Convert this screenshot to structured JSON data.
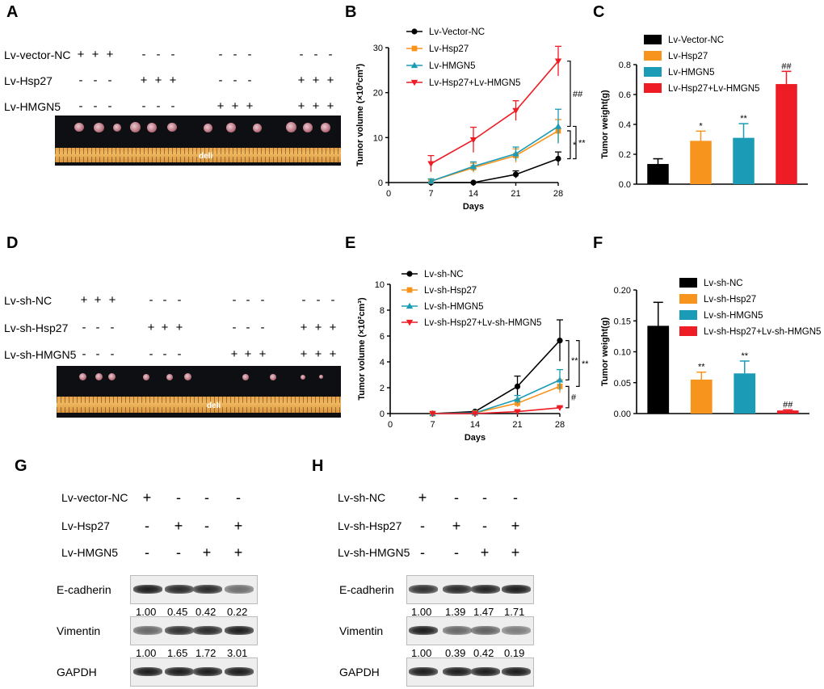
{
  "panels": {
    "A": {
      "label": "A",
      "rows": [
        {
          "label": "Lv-vector-NC",
          "signs": [
            "+",
            "+",
            "+",
            "-",
            "-",
            "-",
            "-",
            "-",
            "-",
            "-",
            "-",
            "-"
          ]
        },
        {
          "label": "Lv-Hsp27",
          "signs": [
            "-",
            "-",
            "-",
            "+",
            "+",
            "+",
            "-",
            "-",
            "-",
            "+",
            "+",
            "+"
          ]
        },
        {
          "label": "Lv-HMGN5",
          "signs": [
            "-",
            "-",
            "-",
            "-",
            "-",
            "-",
            "+",
            "+",
            "+",
            "+",
            "+",
            "+"
          ]
        }
      ],
      "ruler_brand": "deli"
    },
    "D": {
      "label": "D",
      "rows": [
        {
          "label": "Lv-sh-NC",
          "signs": [
            "+",
            "+",
            "+",
            "-",
            "-",
            "-",
            "-",
            "-",
            "-",
            "-",
            "-",
            "-"
          ]
        },
        {
          "label": "Lv-sh-Hsp27",
          "signs": [
            "-",
            "-",
            "-",
            "+",
            "+",
            "+",
            "-",
            "-",
            "-",
            "+",
            "+",
            "+"
          ]
        },
        {
          "label": "Lv-sh-HMGN5",
          "signs": [
            "-",
            "-",
            "-",
            "-",
            "-",
            "-",
            "+",
            "+",
            "+",
            "+",
            "+",
            "+"
          ]
        }
      ],
      "ruler_brand": "deli"
    },
    "G": {
      "label": "G",
      "rows": [
        {
          "label": "Lv-vector-NC",
          "signs": [
            "+",
            "-",
            "-",
            "-"
          ]
        },
        {
          "label": "Lv-Hsp27",
          "signs": [
            "-",
            "+",
            "-",
            "+"
          ]
        },
        {
          "label": "Lv-HMGN5",
          "signs": [
            "-",
            "-",
            "+",
            "+"
          ]
        }
      ],
      "blots": [
        {
          "name": "E-cadherin",
          "quant": [
            "1.00",
            "0.45",
            "0.42",
            "0.22"
          ],
          "intensity": [
            1.0,
            0.9,
            0.9,
            0.4
          ]
        },
        {
          "name": "Vimentin",
          "quant": [
            "1.00",
            "1.65",
            "1.72",
            "3.01"
          ],
          "intensity": [
            0.45,
            0.85,
            0.9,
            1.0
          ]
        },
        {
          "name": "GAPDH",
          "quant": [],
          "intensity": [
            1.0,
            1.0,
            1.0,
            1.0
          ]
        }
      ]
    },
    "H": {
      "label": "H",
      "rows": [
        {
          "label": "Lv-sh-NC",
          "signs": [
            "+",
            "-",
            "-",
            "-"
          ]
        },
        {
          "label": "Lv-sh-Hsp27",
          "signs": [
            "-",
            "+",
            "-",
            "+"
          ]
        },
        {
          "label": "Lv-sh-HMGN5",
          "signs": [
            "-",
            "-",
            "+",
            "+"
          ]
        }
      ],
      "blots": [
        {
          "name": "E-cadherin",
          "quant": [
            "1.00",
            "1.39",
            "1.47",
            "1.71"
          ],
          "intensity": [
            0.85,
            0.9,
            0.95,
            1.0
          ]
        },
        {
          "name": "Vimentin",
          "quant": [
            "1.00",
            "0.39",
            "0.42",
            "0.19"
          ],
          "intensity": [
            1.0,
            0.45,
            0.5,
            0.3
          ]
        },
        {
          "name": "GAPDH",
          "quant": [],
          "intensity": [
            1.0,
            1.0,
            1.0,
            1.0
          ]
        }
      ]
    }
  },
  "colors": {
    "black": "#000000",
    "orange": "#f7941d",
    "teal": "#1b9bb5",
    "red": "#ee1c25"
  },
  "chart_data": [
    {
      "panel": "B",
      "type": "line",
      "xlabel": "Days",
      "ylabel": "Tumor volume (×10²cm³)",
      "x": [
        7,
        14,
        21,
        28
      ],
      "xticks": [
        0,
        7,
        14,
        21,
        28
      ],
      "xlim": [
        0,
        28
      ],
      "ylim": [
        0,
        30
      ],
      "yticks": [
        0,
        10,
        20,
        30
      ],
      "series": [
        {
          "name": "Lv-Vector-NC",
          "color": "#000000",
          "marker": "circle",
          "values": [
            0,
            0,
            1.8,
            5.3
          ],
          "err": [
            0,
            0,
            0.8,
            1.5
          ]
        },
        {
          "name": "Lv-Hsp27",
          "color": "#f7941d",
          "marker": "square",
          "values": [
            0.3,
            3.3,
            6.0,
            11.5
          ],
          "err": [
            0.5,
            1.0,
            1.5,
            2.5
          ]
        },
        {
          "name": "Lv-HMGN5",
          "color": "#1b9bb5",
          "marker": "triangle-up",
          "values": [
            0.3,
            3.6,
            6.4,
            12.5
          ],
          "err": [
            0.5,
            1.0,
            1.5,
            3.8
          ]
        },
        {
          "name": "Lv-Hsp27+Lv-HMGN5",
          "color": "#ee1c25",
          "marker": "triangle-down",
          "values": [
            4.2,
            9.5,
            16.0,
            27.0
          ],
          "err": [
            1.8,
            2.8,
            2.2,
            3.3
          ]
        }
      ],
      "annotations": [
        "##",
        "*",
        "**"
      ]
    },
    {
      "panel": "C",
      "type": "bar",
      "ylabel": "Tumor weight(g)",
      "categories": [
        "Lv-Vector-NC",
        "Lv-Hsp27",
        "Lv-HMGN5",
        "Lv-Hsp27+Lv-HMGN5"
      ],
      "values": [
        0.135,
        0.29,
        0.31,
        0.67
      ],
      "err": [
        0.035,
        0.065,
        0.095,
        0.085
      ],
      "colors": [
        "#000000",
        "#f7941d",
        "#1b9bb5",
        "#ee1c25"
      ],
      "annotations": [
        "",
        "*",
        "**",
        "##"
      ],
      "ylim": [
        0,
        0.8
      ],
      "yticks": [
        "0.0",
        "0.2",
        "0.4",
        "0.6",
        "0.8"
      ]
    },
    {
      "panel": "E",
      "type": "line",
      "xlabel": "Days",
      "ylabel": "Tumor volume (×10²cm³)",
      "x": [
        7,
        14,
        21,
        28
      ],
      "xticks": [
        0,
        7,
        14,
        21,
        28
      ],
      "xlim": [
        0,
        28
      ],
      "ylim": [
        0,
        10
      ],
      "yticks": [
        0,
        2,
        4,
        6,
        8,
        10
      ],
      "series": [
        {
          "name": "Lv-sh-NC",
          "color": "#000000",
          "marker": "circle",
          "values": [
            0,
            0.15,
            2.1,
            5.65
          ],
          "err": [
            0,
            0.05,
            0.8,
            1.6
          ]
        },
        {
          "name": "Lv-sh-Hsp27",
          "color": "#f7941d",
          "marker": "square",
          "values": [
            0,
            0.05,
            0.8,
            2.1
          ],
          "err": [
            0,
            0.05,
            0.3,
            0.5
          ]
        },
        {
          "name": "Lv-sh-HMGN5",
          "color": "#1b9bb5",
          "marker": "triangle-up",
          "values": [
            0,
            0.05,
            1.1,
            2.6
          ],
          "err": [
            0,
            0.05,
            0.3,
            0.8
          ]
        },
        {
          "name": "Lv-sh-Hsp27+Lv-sh-HMGN5",
          "color": "#ee1c25",
          "marker": "triangle-down",
          "values": [
            0,
            0,
            0.15,
            0.45
          ],
          "err": [
            0,
            0,
            0.05,
            0.05
          ]
        }
      ],
      "annotations": [
        "**",
        "**",
        "#"
      ]
    },
    {
      "panel": "F",
      "type": "bar",
      "ylabel": "Tumor weight(g)",
      "categories": [
        "Lv-sh-NC",
        "Lv-sh-Hsp27",
        "Lv-sh-HMGN5",
        "Lv-sh-Hsp27+Lv-sh-HMGN5"
      ],
      "values": [
        0.142,
        0.055,
        0.065,
        0.005
      ],
      "err": [
        0.038,
        0.012,
        0.02,
        0.001
      ],
      "colors": [
        "#000000",
        "#f7941d",
        "#1b9bb5",
        "#ee1c25"
      ],
      "annotations": [
        "",
        "**",
        "**",
        "##"
      ],
      "ylim": [
        0,
        0.2
      ],
      "yticks": [
        "0.00",
        "0.05",
        "0.10",
        "0.15",
        "0.20"
      ]
    }
  ]
}
